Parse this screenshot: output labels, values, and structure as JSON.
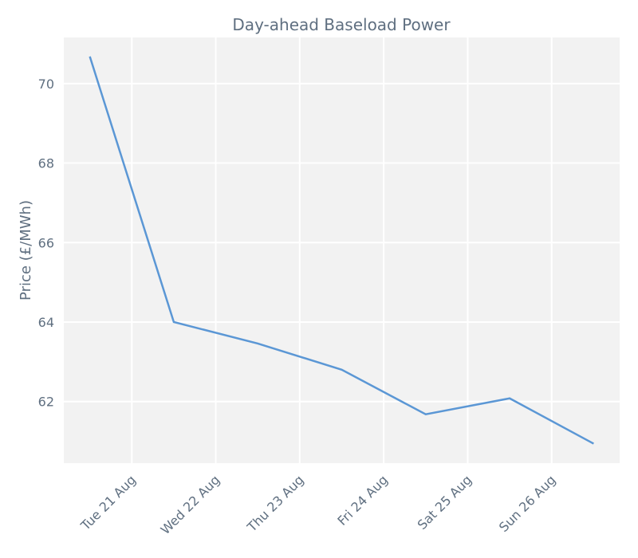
{
  "chart_data": {
    "type": "line",
    "title": "Day-ahead Baseload Power",
    "y_label": "Price (£/MWh)",
    "x": [
      20.5,
      21.5,
      22.5,
      23.5,
      24.5,
      25.5,
      26.5
    ],
    "series": [
      {
        "name": "Price",
        "color": "#5b97d5",
        "values": [
          70.68,
          64.0,
          63.46,
          62.8,
          61.68,
          62.08,
          60.94
        ]
      }
    ],
    "xlim": [
      20.19,
      26.81
    ],
    "xticks": [
      {
        "value": 21,
        "label": "Tue 21 Aug"
      },
      {
        "value": 22,
        "label": "Wed 22 Aug"
      },
      {
        "value": 23,
        "label": "Thu 23 Aug"
      },
      {
        "value": 24,
        "label": "Fri 24 Aug"
      },
      {
        "value": 25,
        "label": "Sat 25 Aug"
      },
      {
        "value": 26,
        "label": "Sun 26 Aug"
      }
    ],
    "ylim": [
      60.45,
      71.16
    ],
    "yticks": [
      62,
      64,
      66,
      68,
      70
    ],
    "grid": true
  }
}
